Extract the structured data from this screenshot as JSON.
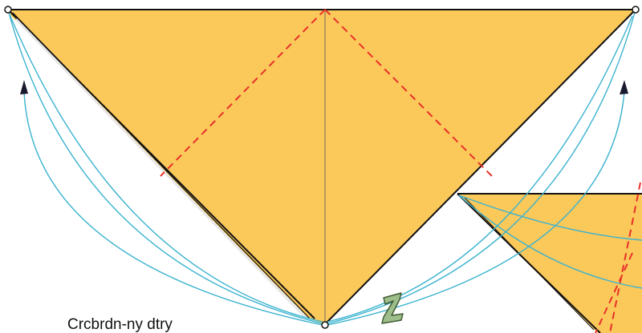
{
  "caption": "Crcbrdn-ny dtry",
  "colors": {
    "paper": "#FBC85A",
    "outline": "#111111",
    "crease_valley": "#E8302A",
    "center_crease": "#B89A5C",
    "arc": "#3BB3CF",
    "arrow_head": "#1A1A2E",
    "step_badge_fill": "#9DBE8A",
    "step_badge_stroke": "#3F5C34"
  },
  "diagram": {
    "step_badge_icon": "fold-step-2-icon",
    "fold_direction_markers": [
      "arrow-up-left-icon",
      "arrow-up-right-icon"
    ],
    "reference_points": [
      "corner-top-left",
      "corner-top-right",
      "corner-bottom-center"
    ]
  }
}
